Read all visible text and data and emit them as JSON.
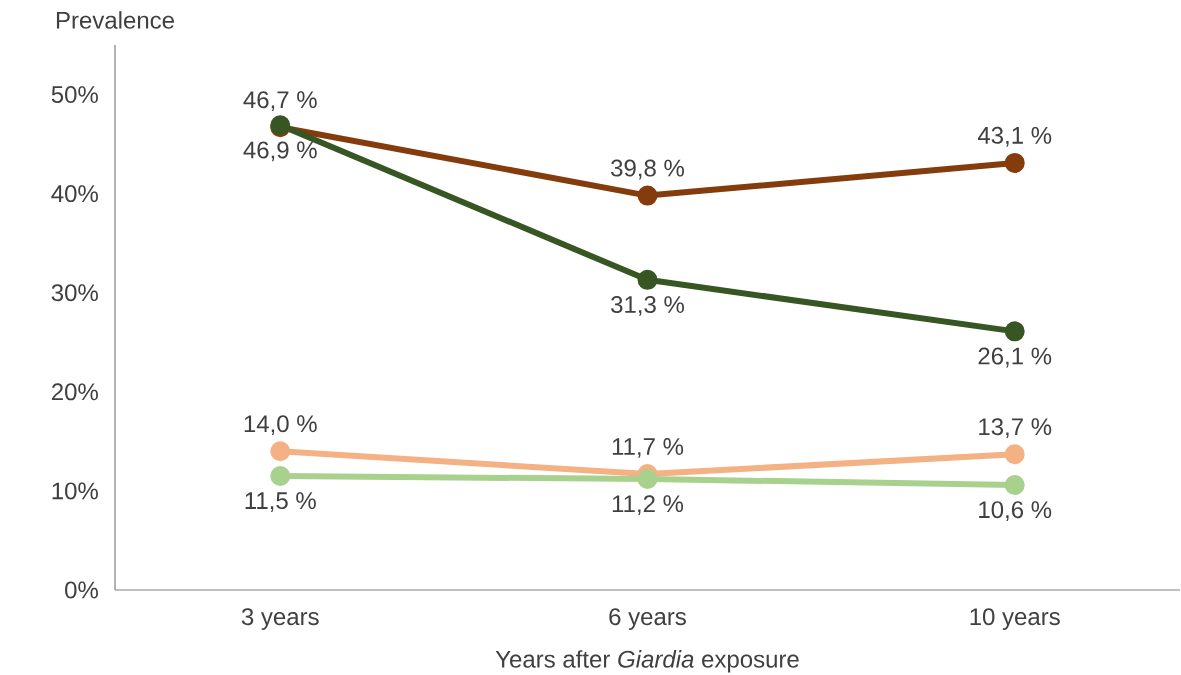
{
  "chart_data": {
    "type": "line",
    "ylabel": "Prevalence",
    "xlabel": "Years after *Giardia* exposure",
    "categories": [
      "3 years",
      "6 years",
      "10 years"
    ],
    "series": [
      {
        "color": "#843c0c",
        "values": [
          46.7,
          39.8,
          43.1
        ],
        "value_labels": [
          "46,7 %",
          "39,8 %",
          "43,1 %"
        ]
      },
      {
        "color": "#375623",
        "values": [
          46.9,
          31.3,
          26.1
        ],
        "value_labels": [
          "46,9 %",
          "31,3 %",
          "26,1 %"
        ]
      },
      {
        "color": "#f4b183",
        "values": [
          14.0,
          11.7,
          13.7
        ],
        "value_labels": [
          "14,0 %",
          "11,7 %",
          "13,7 %"
        ]
      },
      {
        "color": "#a9d18e",
        "values": [
          11.5,
          11.2,
          10.6
        ],
        "value_labels": [
          "11,5 %",
          "11,2 %",
          "10,6 %"
        ]
      }
    ],
    "ylim": [
      0,
      55
    ],
    "yticks": [
      {
        "value": 0,
        "label": "0%"
      },
      {
        "value": 10,
        "label": "10%"
      },
      {
        "value": 20,
        "label": "20%"
      },
      {
        "value": 30,
        "label": "30%"
      },
      {
        "value": 40,
        "label": "40%"
      },
      {
        "value": 50,
        "label": "50%"
      }
    ],
    "grid": false,
    "marker": "circle",
    "line_style": "solid"
  }
}
